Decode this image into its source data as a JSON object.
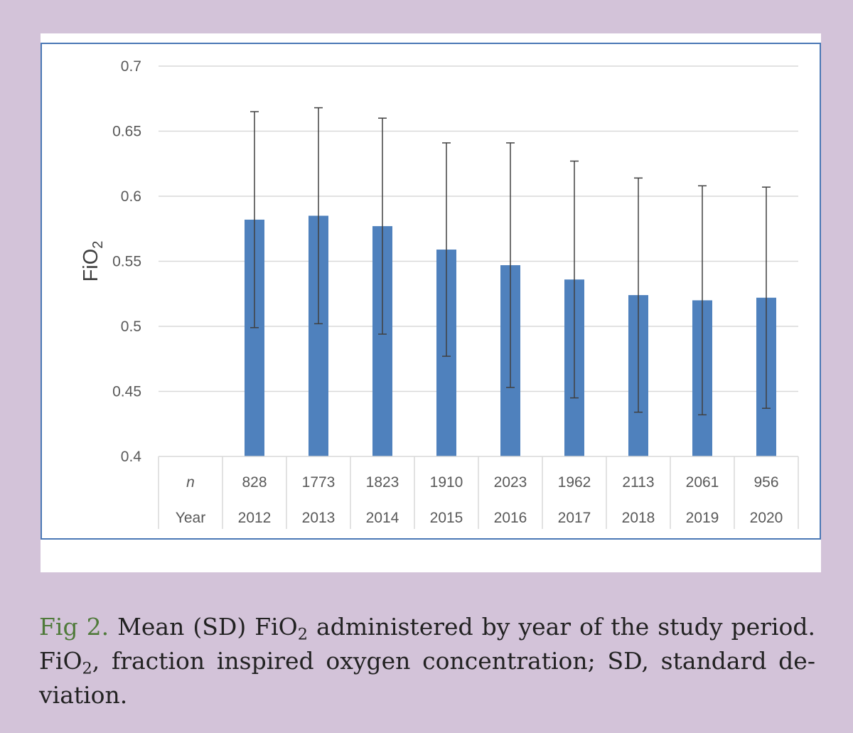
{
  "chart_data": {
    "type": "bar",
    "title": "",
    "ylabel": {
      "main": "FiO",
      "sub": "2"
    },
    "xlabel": "",
    "ylim": [
      0.4,
      0.7
    ],
    "y_ticks": [
      "0.4",
      "0.45",
      "0.5",
      "0.55",
      "0.6",
      "0.65",
      "0.7"
    ],
    "grid": true,
    "legend": "none",
    "bar_color": "#4f81bd",
    "categories": [
      "2012",
      "2013",
      "2014",
      "2015",
      "2016",
      "2017",
      "2018",
      "2019",
      "2020"
    ],
    "series": [
      {
        "values": [
          0.582,
          0.585,
          0.577,
          0.559,
          0.547,
          0.536,
          0.524,
          0.52,
          0.522
        ],
        "sd": [
          0.083,
          0.083,
          0.083,
          0.082,
          0.094,
          0.091,
          0.09,
          0.088,
          0.085
        ]
      }
    ],
    "data_table": {
      "rows": [
        {
          "label": "n",
          "values": [
            "828",
            "1773",
            "1823",
            "1910",
            "2023",
            "1962",
            "2113",
            "2061",
            "956"
          ]
        },
        {
          "label": "Year",
          "values": [
            "2012",
            "2013",
            "2014",
            "2015",
            "2016",
            "2017",
            "2018",
            "2019",
            "2020"
          ]
        }
      ]
    }
  },
  "caption": {
    "label": "Fig 2.",
    "part1": " Mean (SD) FiO",
    "sub1": "2",
    "part2": " administered by year of the study period. FiO",
    "sub2": "2",
    "part3": ", fraction inspired oxygen concentration; SD, standard de-viation."
  }
}
